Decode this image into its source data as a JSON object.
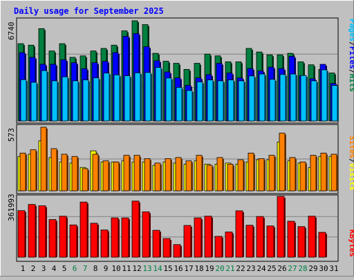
{
  "colors": {
    "background": "#c0c0c0",
    "panel": "#c0c0c0",
    "title": "#0000ff",
    "hits": "#008040",
    "files": "#0000ff",
    "pages": "#00c0ff",
    "visits": "#ffff00",
    "sites": "#ff8000",
    "kbytes": "#ff0000",
    "weekend_label": "#008040",
    "weekday_label": "#000000"
  },
  "chart_data": [
    {
      "type": "bar",
      "title": "Daily usage for September 2025",
      "ymax_label": "6740",
      "ylim": [
        0,
        6740
      ],
      "grid": true,
      "legend": "right",
      "legend_items": [
        {
          "key": "pages",
          "label": "Pages"
        },
        {
          "key": "sep",
          "label": "/"
        },
        {
          "key": "files",
          "label": "Files"
        },
        {
          "key": "sep",
          "label": "/"
        },
        {
          "key": "hits",
          "label": "Hits"
        }
      ],
      "categories": [
        "1",
        "2",
        "3",
        "4",
        "5",
        "6",
        "7",
        "8",
        "9",
        "10",
        "11",
        "12",
        "13",
        "14",
        "15",
        "16",
        "17",
        "18",
        "19",
        "20",
        "21",
        "22",
        "23",
        "24",
        "25",
        "26",
        "27",
        "28",
        "29",
        "30",
        "31"
      ],
      "weekend_days": [
        "6",
        "7",
        "13",
        "14",
        "20",
        "21",
        "27",
        "28"
      ],
      "series": [
        {
          "name": "Hits",
          "key": "hits",
          "values": [
            5200,
            5100,
            6210,
            4710,
            5200,
            4280,
            4380,
            4710,
            4880,
            5100,
            6060,
            6740,
            6480,
            4550,
            4020,
            3880,
            3470,
            3880,
            4500,
            4380,
            3980,
            3980,
            4880,
            4640,
            4450,
            4450,
            4550,
            3980,
            3780,
            3470,
            3230
          ]
        },
        {
          "name": "Files",
          "key": "files",
          "values": [
            4600,
            4280,
            3820,
            3820,
            4120,
            3920,
            3520,
            3920,
            4020,
            4600,
            5700,
            5880,
            5000,
            4050,
            3300,
            2900,
            2400,
            2900,
            3120,
            3880,
            3230,
            2900,
            3530,
            3370,
            3620,
            3530,
            4350,
            3050,
            2840,
            3810,
            2530
          ]
        },
        {
          "name": "Pages",
          "key": "pages",
          "values": [
            2780,
            2600,
            3390,
            2700,
            2970,
            2700,
            2760,
            2900,
            3220,
            3100,
            3040,
            3240,
            3260,
            3600,
            2890,
            2260,
            2050,
            2630,
            2760,
            2700,
            2760,
            2700,
            3030,
            3160,
            2800,
            3130,
            3160,
            3060,
            2700,
            3440,
            2390
          ]
        }
      ]
    },
    {
      "type": "bar",
      "ymax_label": "573",
      "ylim": [
        0,
        573
      ],
      "grid": true,
      "legend": "right",
      "legend_items": [
        {
          "key": "sites",
          "label": "Sites"
        },
        {
          "key": "sep",
          "label": "/"
        },
        {
          "key": "visits",
          "label": "Visits"
        }
      ],
      "categories": [
        "1",
        "2",
        "3",
        "4",
        "5",
        "6",
        "7",
        "8",
        "9",
        "10",
        "11",
        "12",
        "13",
        "14",
        "15",
        "16",
        "17",
        "18",
        "19",
        "20",
        "21",
        "22",
        "23",
        "24",
        "25",
        "26",
        "27",
        "28",
        "29",
        "30",
        "31"
      ],
      "series": [
        {
          "name": "Visits",
          "key": "visits",
          "values": [
            310,
            330,
            450,
            300,
            260,
            250,
            210,
            360,
            260,
            260,
            270,
            260,
            260,
            230,
            260,
            250,
            240,
            270,
            240,
            240,
            250,
            240,
            260,
            280,
            280,
            440,
            270,
            250,
            210,
            310,
            310
          ]
        },
        {
          "name": "Sites",
          "key": "sites",
          "values": [
            340,
            370,
            573,
            380,
            330,
            310,
            200,
            330,
            270,
            260,
            320,
            320,
            290,
            250,
            290,
            300,
            270,
            320,
            230,
            300,
            240,
            280,
            340,
            290,
            320,
            520,
            300,
            260,
            320,
            340,
            330
          ]
        }
      ]
    },
    {
      "type": "bar",
      "ymax_label": "361993",
      "ylim": [
        0,
        361993
      ],
      "grid": true,
      "legend": "right",
      "legend_items": [
        {
          "key": "kbytes",
          "label": "KBytes"
        }
      ],
      "categories": [
        "1",
        "2",
        "3",
        "4",
        "5",
        "6",
        "7",
        "8",
        "9",
        "10",
        "11",
        "12",
        "13",
        "14",
        "15",
        "16",
        "17",
        "18",
        "19",
        "20",
        "21",
        "22",
        "23",
        "24",
        "25",
        "26",
        "27",
        "28",
        "29",
        "30",
        "31"
      ],
      "series": [
        {
          "name": "KBytes",
          "key": "kbytes",
          "values": [
            277000,
            314000,
            306000,
            224000,
            244000,
            192000,
            328000,
            202000,
            162000,
            234000,
            234000,
            334000,
            270000,
            160000,
            111000,
            75000,
            189000,
            234000,
            244000,
            124000,
            150000,
            276000,
            190000,
            242000,
            186000,
            361993,
            214000,
            182000,
            244000,
            148000,
            0
          ]
        }
      ]
    }
  ]
}
